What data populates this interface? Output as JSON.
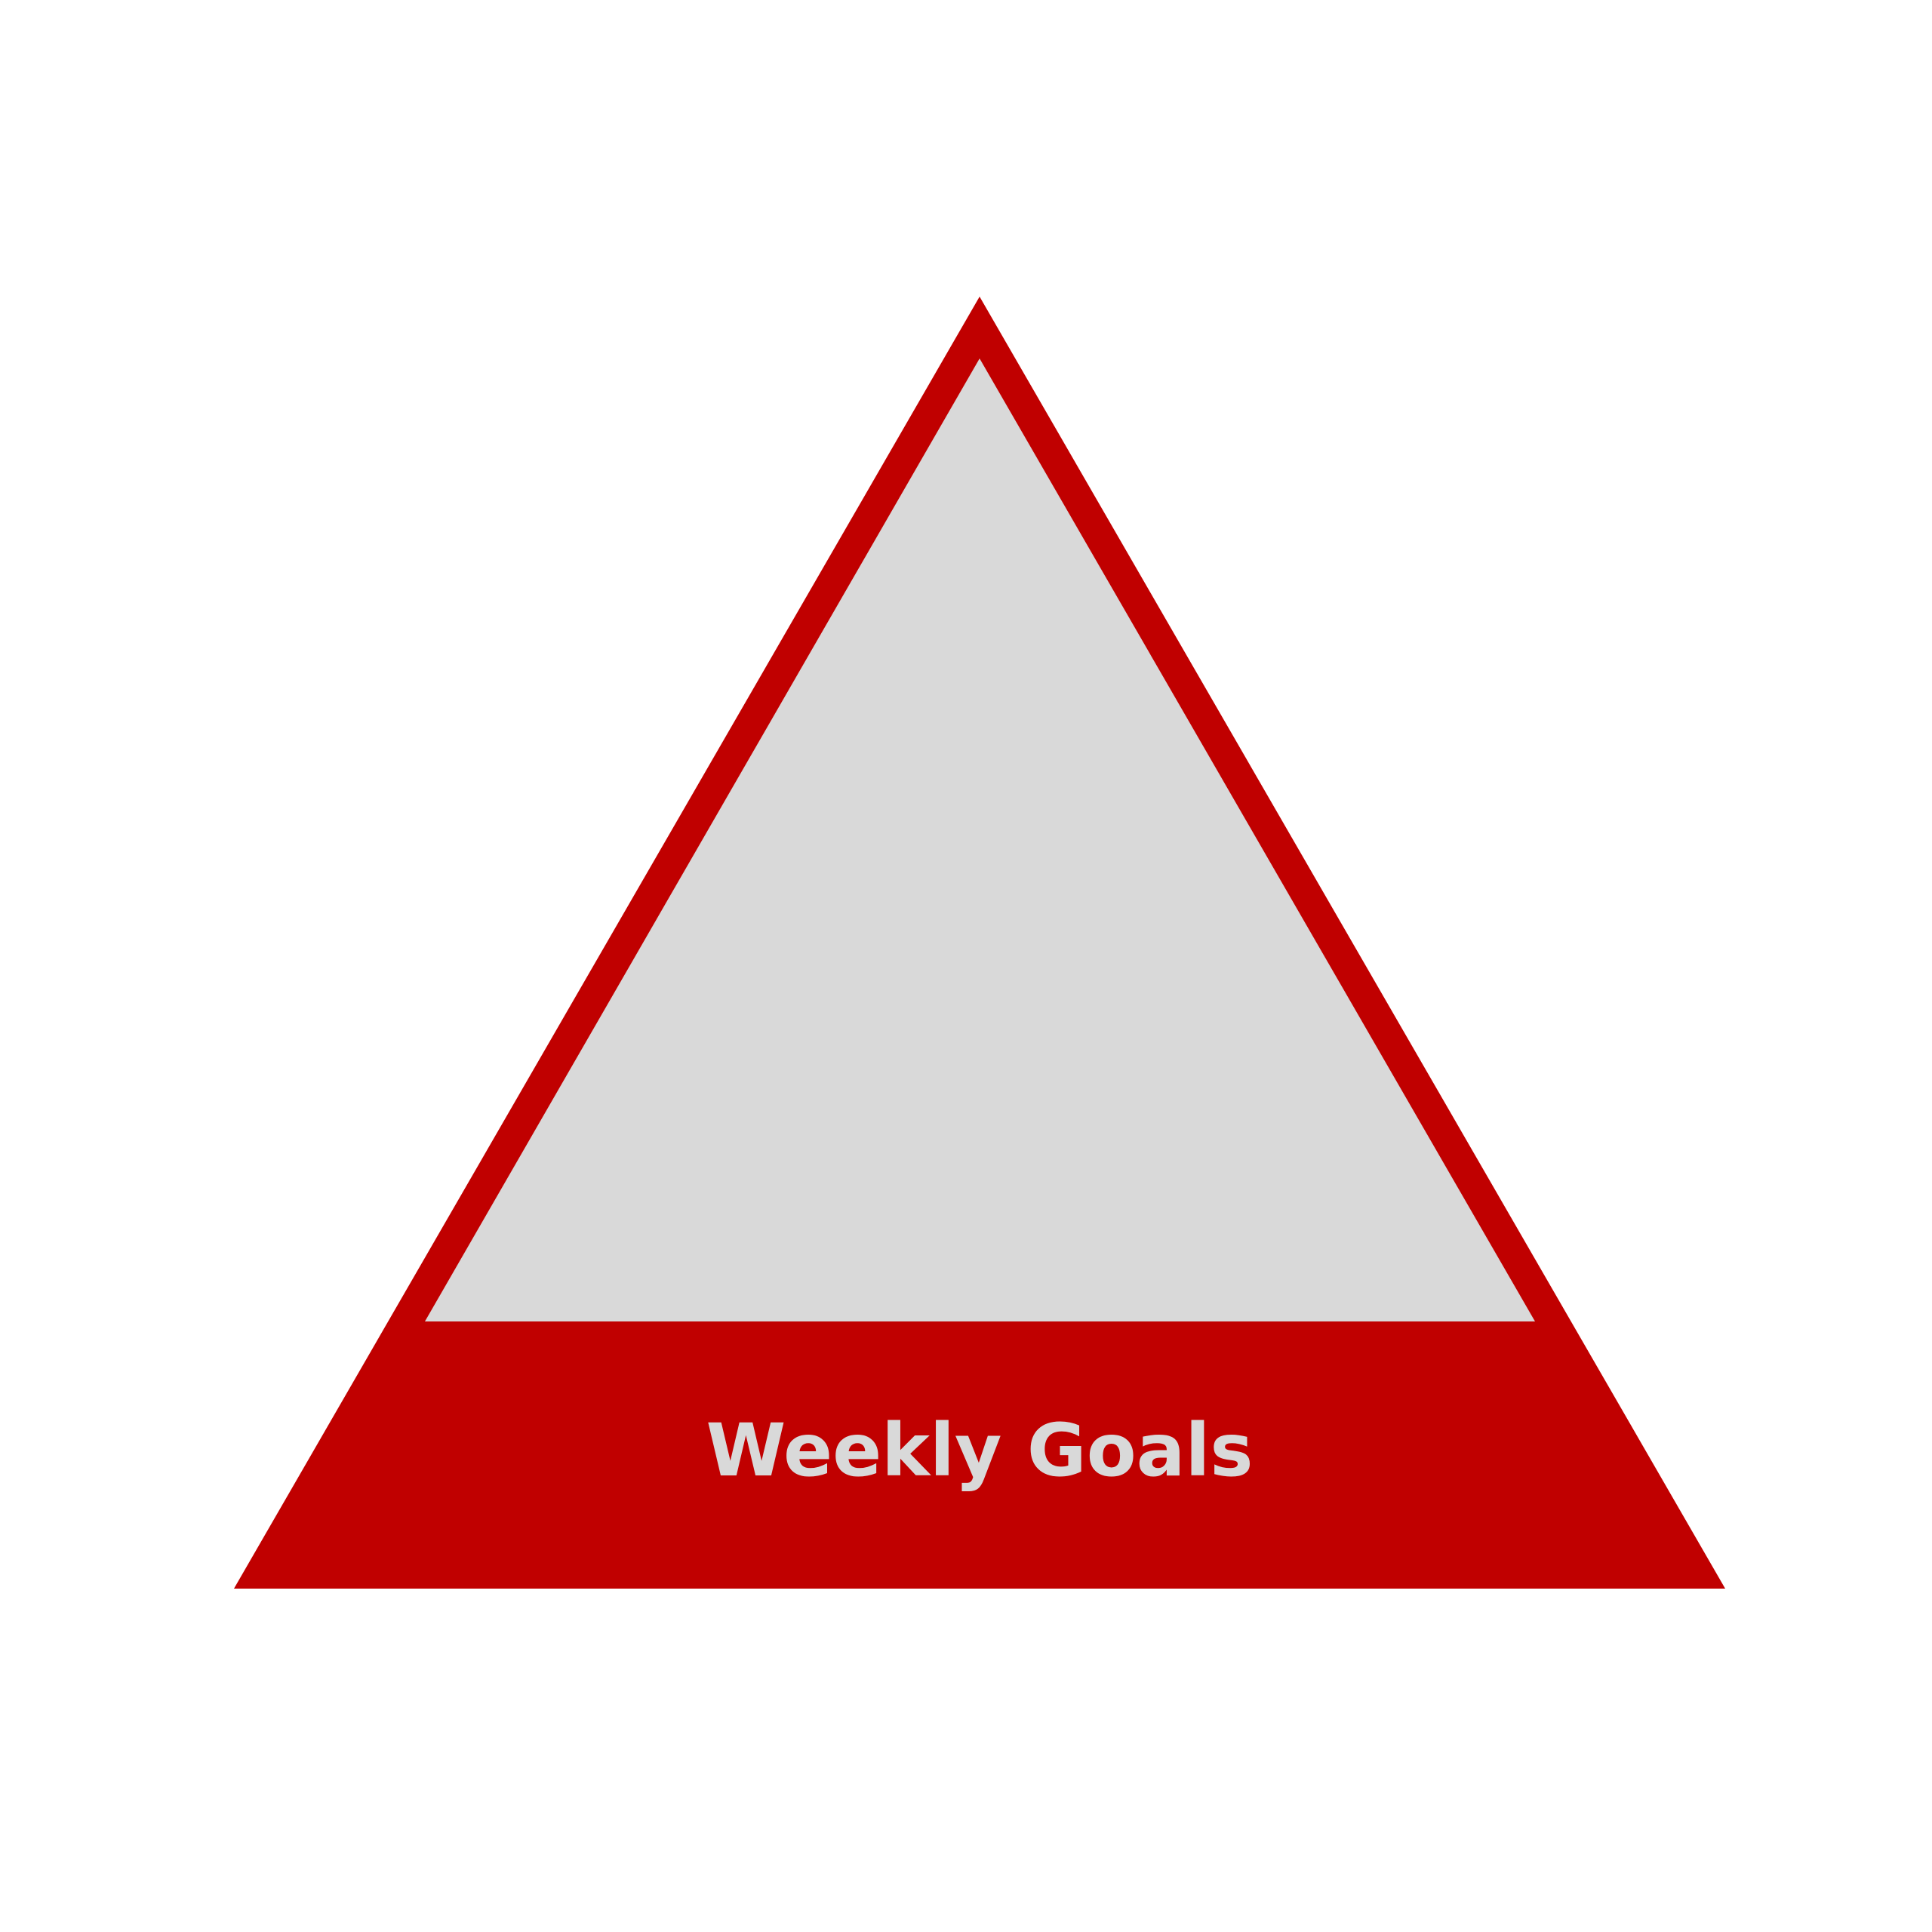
{
  "diagram": {
    "base_label": "Weekly Goals"
  },
  "colors": {
    "outer_fill": "#c00000",
    "inner_fill": "#d9d9d9",
    "label_color": "#d9d9d9",
    "background": "#ffffff"
  }
}
